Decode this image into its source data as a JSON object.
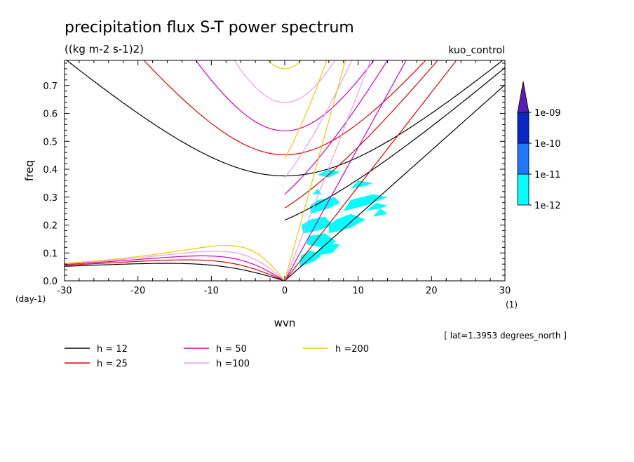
{
  "chart_data": {
    "type": "line",
    "title": "precipitation flux S-T power spectrum",
    "subtitle": "((kg m-2 s-1)2)",
    "run_label": "kuo_control",
    "xlabel": "wvn",
    "ylabel": "freq",
    "x_unit": "(1)",
    "y_unit": "(day-1)",
    "footnote": "[ lat=1.3953 degrees_north ]",
    "xlim": [
      -30,
      30
    ],
    "ylim": [
      0,
      0.79
    ],
    "x_ticks": [
      "-30",
      "-20",
      "-10",
      "0",
      "10",
      "20",
      "30"
    ],
    "y_ticks": [
      "0.0",
      "0.1",
      "0.2",
      "0.3",
      "0.4",
      "0.5",
      "0.6",
      "0.7"
    ],
    "x_tick_values": [
      -30,
      -20,
      -10,
      0,
      10,
      20,
      30
    ],
    "y_tick_values": [
      0,
      0.1,
      0.2,
      0.3,
      0.4,
      0.5,
      0.6,
      0.7
    ],
    "series": [
      {
        "name": "h = 12",
        "h": 12,
        "color": "#000000"
      },
      {
        "name": "h = 25",
        "h": 25,
        "color": "#e00000"
      },
      {
        "name": "h = 50",
        "h": 50,
        "color": "#d000c0"
      },
      {
        "name": "h =100",
        "h": 100,
        "color": "#e8a0e8"
      },
      {
        "name": "h =200",
        "h": 200,
        "color": "#f0c800"
      }
    ],
    "colorbar": {
      "levels": [
        "1e-12",
        "1e-11",
        "1e-10",
        "1e-09"
      ],
      "colors": [
        "#00ffff",
        "#1e78ff",
        "#0a28c8",
        "#5a1eb4"
      ]
    },
    "shaded_regions": [
      {
        "points": [
          [
            3.5,
            0.24
          ],
          [
            6,
            0.26
          ],
          [
            7.5,
            0.28
          ],
          [
            6.8,
            0.3
          ],
          [
            4.5,
            0.29
          ],
          [
            3.5,
            0.27
          ]
        ],
        "level": "1e-12"
      },
      {
        "points": [
          [
            2.5,
            0.17
          ],
          [
            4.5,
            0.18
          ],
          [
            6.5,
            0.2
          ],
          [
            5.5,
            0.23
          ],
          [
            3.5,
            0.22
          ],
          [
            2.3,
            0.2
          ]
        ],
        "level": "1e-12"
      },
      {
        "points": [
          [
            3,
            0.13
          ],
          [
            5,
            0.12
          ],
          [
            7,
            0.14
          ],
          [
            5.5,
            0.17
          ],
          [
            3.2,
            0.16
          ]
        ],
        "level": "1e-12"
      },
      {
        "points": [
          [
            2,
            0.05
          ],
          [
            4,
            0.07
          ],
          [
            5,
            0.09
          ],
          [
            3.5,
            0.11
          ],
          [
            2.2,
            0.09
          ]
        ],
        "level": "1e-12"
      },
      {
        "points": [
          [
            6,
            0.17
          ],
          [
            9,
            0.19
          ],
          [
            11,
            0.22
          ],
          [
            9,
            0.24
          ],
          [
            7,
            0.22
          ],
          [
            6,
            0.2
          ]
        ],
        "level": "1e-12"
      },
      {
        "points": [
          [
            8,
            0.25
          ],
          [
            11,
            0.27
          ],
          [
            14,
            0.3
          ],
          [
            12,
            0.31
          ],
          [
            9,
            0.29
          ]
        ],
        "level": "1e-12"
      },
      {
        "points": [
          [
            11,
            0.25
          ],
          [
            13,
            0.26
          ],
          [
            14,
            0.27
          ],
          [
            12.5,
            0.28
          ]
        ],
        "level": "1e-12"
      },
      {
        "points": [
          [
            4.5,
            0.38
          ],
          [
            6,
            0.37
          ],
          [
            7.5,
            0.39
          ],
          [
            6,
            0.4
          ]
        ],
        "level": "1e-12"
      },
      {
        "points": [
          [
            9,
            0.33
          ],
          [
            11,
            0.34
          ],
          [
            12,
            0.35
          ],
          [
            10,
            0.36
          ]
        ],
        "level": "1e-12"
      },
      {
        "points": [
          [
            12,
            0.23
          ],
          [
            14,
            0.24
          ],
          [
            13,
            0.26
          ]
        ],
        "level": "1e-12"
      },
      {
        "points": [
          [
            4,
            0.09
          ],
          [
            6.5,
            0.1
          ],
          [
            7.5,
            0.13
          ],
          [
            5.5,
            0.14
          ]
        ],
        "level": "1e-12"
      },
      {
        "points": [
          [
            3.8,
            0.31
          ],
          [
            5,
            0.31
          ],
          [
            4.5,
            0.33
          ]
        ],
        "level": "1e-12"
      }
    ]
  }
}
